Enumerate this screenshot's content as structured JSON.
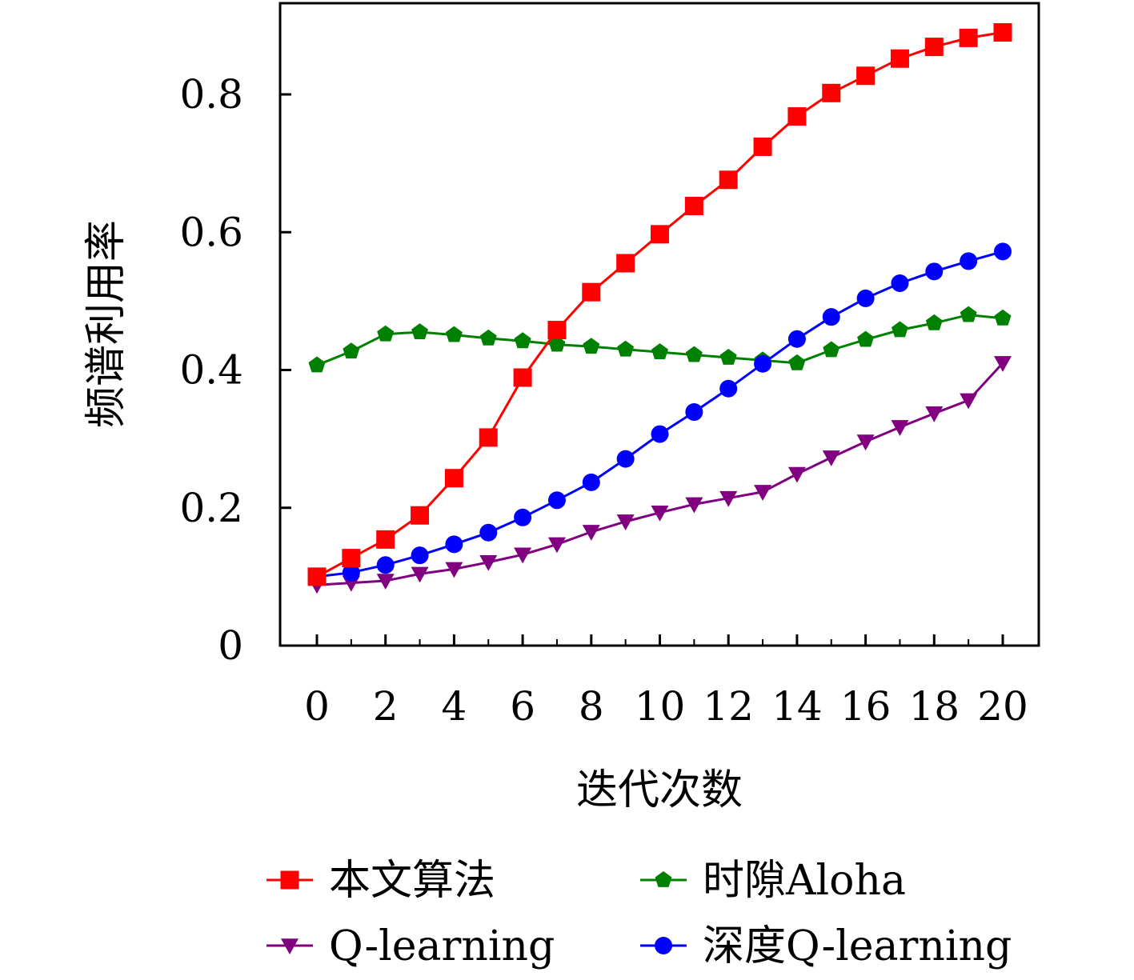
{
  "chart_data": {
    "type": "line",
    "xlabel": "迭代次数",
    "ylabel": "频谱利用率",
    "xlim": [
      0,
      20
    ],
    "ylim": [
      0,
      0.9
    ],
    "x_ticks": [
      "0",
      "2",
      "4",
      "6",
      "8",
      "10",
      "12",
      "14",
      "16",
      "18",
      "20"
    ],
    "y_ticks": [
      "0",
      "0.2",
      "0.4",
      "0.6",
      "0.8"
    ],
    "grid": false,
    "legend_position": "bottom",
    "x": [
      0,
      1,
      2,
      3,
      4,
      5,
      6,
      7,
      8,
      9,
      10,
      11,
      12,
      13,
      14,
      15,
      16,
      17,
      18,
      19,
      20
    ],
    "series": [
      {
        "name": "本文算法",
        "color": "#ff0000",
        "marker": "square",
        "values": [
          0.1,
          0.127,
          0.154,
          0.189,
          0.243,
          0.302,
          0.389,
          0.458,
          0.513,
          0.555,
          0.597,
          0.638,
          0.676,
          0.724,
          0.768,
          0.802,
          0.827,
          0.852,
          0.869,
          0.882,
          0.89
        ]
      },
      {
        "name": "时隙Aloha",
        "color": "#008000",
        "marker": "pentagon",
        "values": [
          0.407,
          0.427,
          0.452,
          0.455,
          0.451,
          0.446,
          0.442,
          0.437,
          0.434,
          0.43,
          0.426,
          0.422,
          0.418,
          0.414,
          0.41,
          0.429,
          0.444,
          0.458,
          0.468,
          0.48,
          0.475
        ]
      },
      {
        "name": "Q-learning",
        "color": "#800080",
        "marker": "triangle-down",
        "values": [
          0.088,
          0.091,
          0.094,
          0.104,
          0.111,
          0.121,
          0.132,
          0.147,
          0.165,
          0.18,
          0.193,
          0.205,
          0.214,
          0.223,
          0.249,
          0.273,
          0.296,
          0.317,
          0.337,
          0.356,
          0.41
        ]
      },
      {
        "name": "深度Q-learning",
        "color": "#0000ff",
        "marker": "circle",
        "values": [
          0.1,
          0.106,
          0.117,
          0.131,
          0.147,
          0.164,
          0.186,
          0.211,
          0.237,
          0.271,
          0.307,
          0.339,
          0.373,
          0.409,
          0.445,
          0.477,
          0.504,
          0.526,
          0.543,
          0.558,
          0.572
        ]
      }
    ]
  }
}
